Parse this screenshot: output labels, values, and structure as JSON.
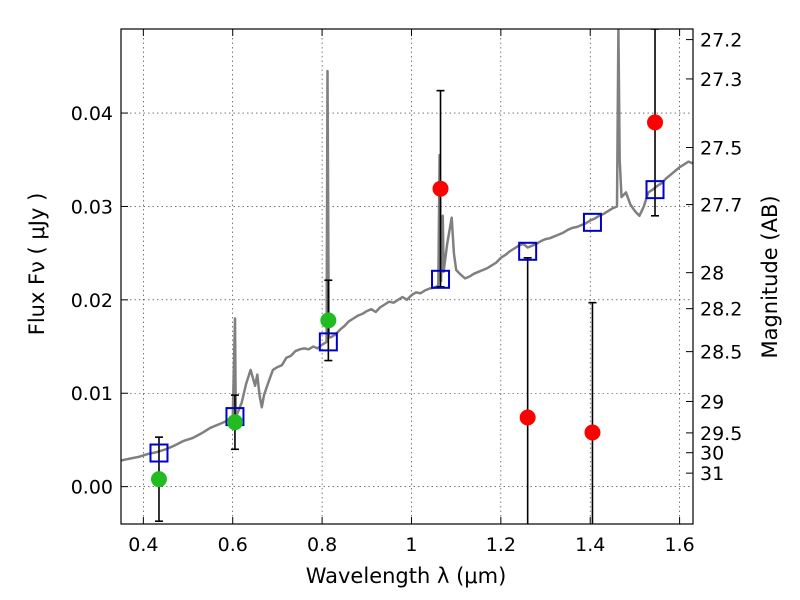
{
  "chart_data": {
    "type": "scatter",
    "xlabel": "Wavelength  λ (μm)",
    "ylabel": "Flux  Fν  ( μJy )",
    "y2label": "Magnitude (AB)",
    "xlim": [
      0.35,
      1.63
    ],
    "ylim": [
      -0.004,
      0.049
    ],
    "xticks": [
      0.4,
      0.6,
      0.8,
      1.0,
      1.2,
      1.4,
      1.6
    ],
    "xtick_labels": [
      "0.4",
      "0.6",
      "0.8",
      "1",
      "1.2",
      "1.4",
      "1.6"
    ],
    "yticks": [
      0.0,
      0.01,
      0.02,
      0.03,
      0.04
    ],
    "ytick_labels": [
      "0.00",
      "0.01",
      "0.02",
      "0.03",
      "0.04"
    ],
    "mag_ticks": [
      27.2,
      27.3,
      27.5,
      27.7,
      28,
      28.2,
      28.5,
      29,
      29.5,
      30,
      31
    ],
    "mag_tick_labels": [
      "27.2",
      "27.3",
      "27.5",
      "27.7",
      "28",
      "28.2",
      "28.5",
      "29",
      "29.5",
      "30",
      "31"
    ],
    "grid": true,
    "colors": {
      "detected": "#22bb22",
      "non_detected": "#ff0000",
      "model": "#0000cc",
      "spectrum": "#808080",
      "errorbar": "#000000"
    },
    "observed_points": [
      {
        "x": 0.435,
        "y": 0.0008,
        "yerr": 0.0045,
        "status": "detected"
      },
      {
        "x": 0.605,
        "y": 0.0069,
        "yerr": 0.0029,
        "status": "detected"
      },
      {
        "x": 0.814,
        "y": 0.0178,
        "yerr": 0.0043,
        "status": "detected"
      },
      {
        "x": 1.065,
        "y": 0.0319,
        "yerr": 0.0105,
        "status": "non_detected"
      },
      {
        "x": 1.26,
        "y": 0.0074,
        "yerr": 0.0171,
        "status": "non_detected"
      },
      {
        "x": 1.405,
        "y": 0.0058,
        "yerr": 0.0139,
        "status": "non_detected"
      },
      {
        "x": 1.545,
        "y": 0.039,
        "yerr": 0.01,
        "status": "non_detected"
      }
    ],
    "model_points": [
      {
        "x": 0.435,
        "y": 0.0036
      },
      {
        "x": 0.605,
        "y": 0.0075
      },
      {
        "x": 0.814,
        "y": 0.0155
      },
      {
        "x": 1.065,
        "y": 0.0222
      },
      {
        "x": 1.26,
        "y": 0.0252
      },
      {
        "x": 1.405,
        "y": 0.0283
      },
      {
        "x": 1.545,
        "y": 0.0318
      }
    ],
    "spectrum": [
      [
        0.35,
        0.0028
      ],
      [
        0.37,
        0.003
      ],
      [
        0.39,
        0.0032
      ],
      [
        0.41,
        0.0035
      ],
      [
        0.43,
        0.0037
      ],
      [
        0.45,
        0.004
      ],
      [
        0.47,
        0.0044
      ],
      [
        0.49,
        0.0049
      ],
      [
        0.51,
        0.0052
      ],
      [
        0.53,
        0.0057
      ],
      [
        0.55,
        0.0063
      ],
      [
        0.57,
        0.0067
      ],
      [
        0.59,
        0.0071
      ],
      [
        0.6,
        0.0072
      ],
      [
        0.605,
        0.018
      ],
      [
        0.607,
        0.0075
      ],
      [
        0.61,
        0.0078
      ],
      [
        0.62,
        0.009
      ],
      [
        0.63,
        0.011
      ],
      [
        0.64,
        0.0125
      ],
      [
        0.65,
        0.0108
      ],
      [
        0.655,
        0.012
      ],
      [
        0.66,
        0.0098
      ],
      [
        0.665,
        0.0085
      ],
      [
        0.67,
        0.0098
      ],
      [
        0.68,
        0.0112
      ],
      [
        0.69,
        0.0125
      ],
      [
        0.7,
        0.0128
      ],
      [
        0.71,
        0.013
      ],
      [
        0.72,
        0.0138
      ],
      [
        0.73,
        0.014
      ],
      [
        0.74,
        0.0145
      ],
      [
        0.75,
        0.0147
      ],
      [
        0.76,
        0.0148
      ],
      [
        0.77,
        0.0147
      ],
      [
        0.78,
        0.015
      ],
      [
        0.79,
        0.0148
      ],
      [
        0.8,
        0.0152
      ],
      [
        0.81,
        0.0155
      ],
      [
        0.812,
        0.0445
      ],
      [
        0.815,
        0.016
      ],
      [
        0.82,
        0.016
      ],
      [
        0.83,
        0.0163
      ],
      [
        0.84,
        0.0168
      ],
      [
        0.85,
        0.0172
      ],
      [
        0.86,
        0.0177
      ],
      [
        0.87,
        0.018
      ],
      [
        0.88,
        0.0183
      ],
      [
        0.89,
        0.0185
      ],
      [
        0.9,
        0.0188
      ],
      [
        0.91,
        0.019
      ],
      [
        0.92,
        0.0187
      ],
      [
        0.93,
        0.0192
      ],
      [
        0.94,
        0.0195
      ],
      [
        0.95,
        0.0198
      ],
      [
        0.96,
        0.0197
      ],
      [
        0.97,
        0.02
      ],
      [
        0.98,
        0.0203
      ],
      [
        0.99,
        0.02
      ],
      [
        1.0,
        0.0205
      ],
      [
        1.01,
        0.0208
      ],
      [
        1.02,
        0.0207
      ],
      [
        1.03,
        0.021
      ],
      [
        1.04,
        0.0212
      ],
      [
        1.05,
        0.0213
      ],
      [
        1.06,
        0.0215
      ],
      [
        1.063,
        0.0355
      ],
      [
        1.066,
        0.022
      ],
      [
        1.07,
        0.029
      ],
      [
        1.072,
        0.023
      ],
      [
        1.08,
        0.026
      ],
      [
        1.09,
        0.0288
      ],
      [
        1.095,
        0.025
      ],
      [
        1.1,
        0.0232
      ],
      [
        1.11,
        0.0227
      ],
      [
        1.12,
        0.0223
      ],
      [
        1.13,
        0.0225
      ],
      [
        1.14,
        0.0228
      ],
      [
        1.15,
        0.023
      ],
      [
        1.16,
        0.0232
      ],
      [
        1.17,
        0.0234
      ],
      [
        1.18,
        0.0237
      ],
      [
        1.19,
        0.024
      ],
      [
        1.2,
        0.0245
      ],
      [
        1.21,
        0.0248
      ],
      [
        1.22,
        0.0252
      ],
      [
        1.23,
        0.0255
      ],
      [
        1.24,
        0.0258
      ],
      [
        1.25,
        0.026
      ],
      [
        1.26,
        0.0256
      ],
      [
        1.27,
        0.0258
      ],
      [
        1.28,
        0.026
      ],
      [
        1.29,
        0.0263
      ],
      [
        1.3,
        0.0265
      ],
      [
        1.31,
        0.0266
      ],
      [
        1.32,
        0.0268
      ],
      [
        1.33,
        0.027
      ],
      [
        1.34,
        0.0272
      ],
      [
        1.35,
        0.0275
      ],
      [
        1.36,
        0.0277
      ],
      [
        1.37,
        0.0278
      ],
      [
        1.38,
        0.028
      ],
      [
        1.39,
        0.0282
      ],
      [
        1.4,
        0.0285
      ],
      [
        1.41,
        0.0287
      ],
      [
        1.42,
        0.029
      ],
      [
        1.43,
        0.0292
      ],
      [
        1.44,
        0.0295
      ],
      [
        1.45,
        0.0298
      ],
      [
        1.46,
        0.03
      ],
      [
        1.463,
        0.049
      ],
      [
        1.466,
        0.035
      ],
      [
        1.47,
        0.031
      ],
      [
        1.48,
        0.0315
      ],
      [
        1.49,
        0.0302
      ],
      [
        1.5,
        0.0295
      ],
      [
        1.51,
        0.029
      ],
      [
        1.52,
        0.03
      ],
      [
        1.53,
        0.0315
      ],
      [
        1.54,
        0.0318
      ],
      [
        1.55,
        0.0322
      ],
      [
        1.56,
        0.0325
      ],
      [
        1.57,
        0.033
      ],
      [
        1.58,
        0.0334
      ],
      [
        1.59,
        0.0338
      ],
      [
        1.6,
        0.0342
      ],
      [
        1.61,
        0.0345
      ],
      [
        1.62,
        0.0348
      ],
      [
        1.63,
        0.0346
      ]
    ]
  }
}
